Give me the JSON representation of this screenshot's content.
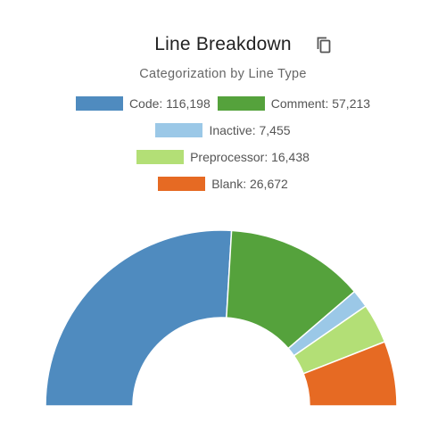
{
  "header": {
    "title": "Line Breakdown",
    "copy_icon": "copy-icon"
  },
  "subtitle": "Categorization by Line Type",
  "legend": {
    "items": [
      {
        "label": "Code: 116,198"
      },
      {
        "label": "Comment: 57,213"
      },
      {
        "label": "Inactive: 7,455"
      },
      {
        "label": "Preprocessor: 16,438"
      },
      {
        "label": "Blank: 26,672"
      }
    ]
  },
  "chart_data": {
    "type": "pie",
    "subtype": "half-donut",
    "title": "Line Breakdown",
    "subtitle": "Categorization by Line Type",
    "categories": [
      "Code",
      "Comment",
      "Inactive",
      "Preprocessor",
      "Blank"
    ],
    "values": [
      116198,
      57213,
      7455,
      16438,
      26672
    ],
    "colors": [
      "#4f8bbf",
      "#55a23c",
      "#9bc8e7",
      "#b3df76",
      "#e66a23"
    ],
    "legend_position": "top",
    "start_angle_deg": -90,
    "end_angle_deg": 90
  }
}
